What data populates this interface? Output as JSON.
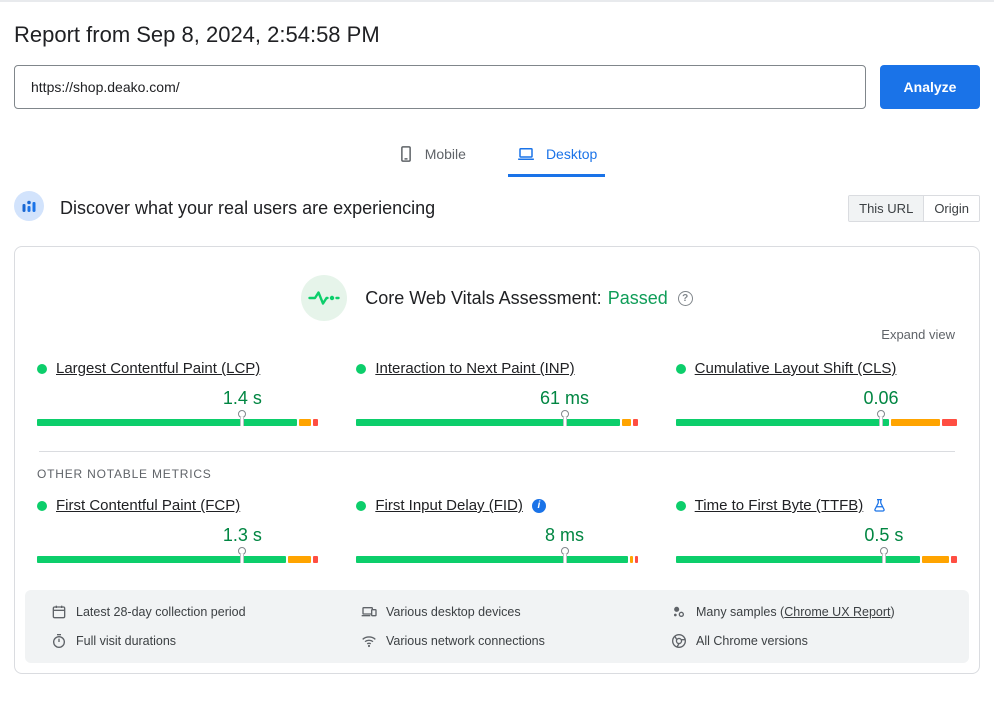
{
  "colors": {
    "good": "#0cce6b",
    "needs_improvement": "#ffa400",
    "poor": "#ff4e42",
    "accent_blue": "#1a73e8",
    "value_green": "#018642",
    "passed_green": "#0f9d58"
  },
  "page": {
    "title": "Report from Sep 8, 2024, 2:54:58 PM",
    "url_value": "https://shop.deako.com/",
    "analyze_label": "Analyze"
  },
  "tabs": [
    {
      "id": "mobile",
      "label": "Mobile",
      "active": false
    },
    {
      "id": "desktop",
      "label": "Desktop",
      "active": true
    }
  ],
  "field_section": {
    "heading": "Discover what your real users are experiencing",
    "scope_options": [
      "This URL",
      "Origin"
    ],
    "scope_selected": "This URL",
    "assessment_prefix": "Core Web Vitals Assessment:",
    "assessment_status": "Passed",
    "expand_view_label": "Expand view",
    "other_metrics_label": "OTHER NOTABLE METRICS"
  },
  "metrics": {
    "core": [
      {
        "id": "lcp",
        "name": "Largest Contentful Paint (LCP)",
        "value": "1.4 s",
        "marker_pct": 73,
        "segments": [
          92,
          4.2,
          1.8
        ],
        "badge": null
      },
      {
        "id": "inp",
        "name": "Interaction to Next Paint (INP)",
        "value": "61 ms",
        "marker_pct": 74,
        "segments": [
          93.5,
          3.5,
          1.5
        ],
        "badge": null
      },
      {
        "id": "cls",
        "name": "Cumulative Layout Shift (CLS)",
        "value": "0.06",
        "marker_pct": 73,
        "segments": [
          73,
          17,
          5
        ],
        "badge": null
      }
    ],
    "other": [
      {
        "id": "fcp",
        "name": "First Contentful Paint (FCP)",
        "value": "1.3 s",
        "marker_pct": 73,
        "segments": [
          87,
          8,
          1.8
        ],
        "badge": null
      },
      {
        "id": "fid",
        "name": "First Input Delay (FID)",
        "value": "8 ms",
        "marker_pct": 74,
        "segments": [
          96.5,
          1,
          1
        ],
        "badge": "info"
      },
      {
        "id": "ttfb",
        "name": "Time to First Byte (TTFB)",
        "value": "0.5 s",
        "marker_pct": 74,
        "segments": [
          86,
          9.5,
          2
        ],
        "badge": "flask"
      }
    ]
  },
  "footer": {
    "items": [
      {
        "icon": "calendar-icon",
        "text": "Latest 28-day collection period"
      },
      {
        "icon": "devices-icon",
        "text": "Various desktop devices"
      },
      {
        "icon": "samples-icon",
        "text_prefix": "Many samples (",
        "link": "Chrome UX Report",
        "text_suffix": ")"
      },
      {
        "icon": "stopwatch-icon",
        "text": "Full visit durations"
      },
      {
        "icon": "wifi-icon",
        "text": "Various network connections"
      },
      {
        "icon": "chrome-icon",
        "text": "All Chrome versions"
      }
    ]
  }
}
